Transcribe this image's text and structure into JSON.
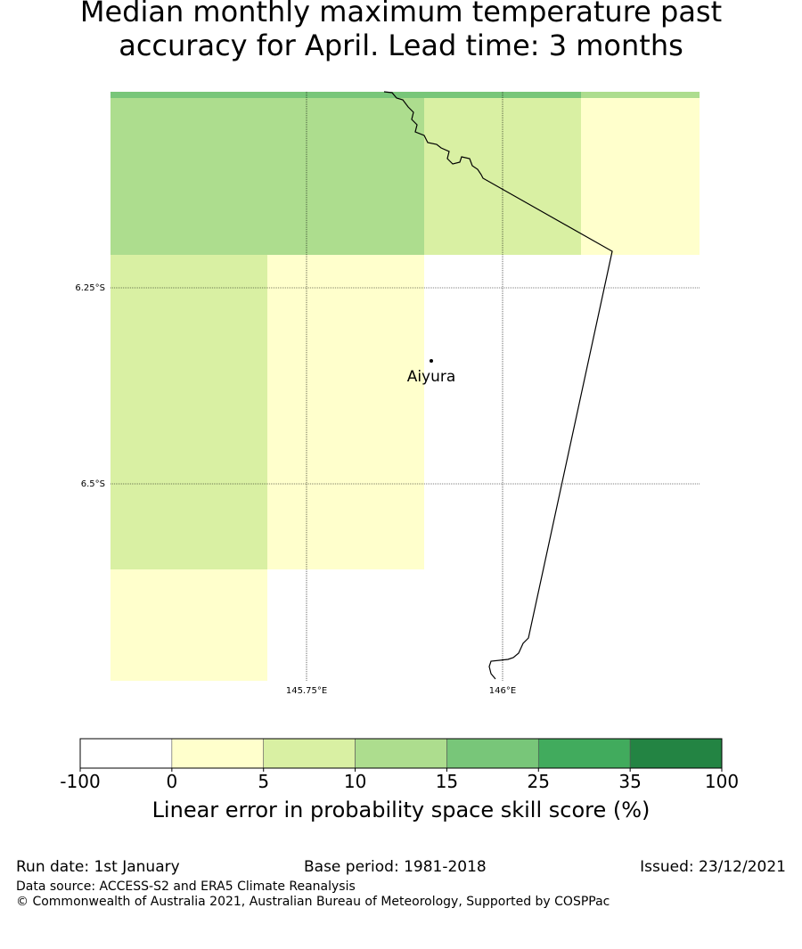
{
  "title": {
    "line1": "Median monthly maximum temperature past",
    "line2": "accuracy for April. Lead time: 3 months"
  },
  "map": {
    "latitude_labels": [
      "6.25°S",
      "6.5°S"
    ],
    "longitude_labels": [
      "145.75°E",
      "146°E"
    ],
    "place": {
      "name": "Aiyura"
    },
    "grid_cells": [
      {
        "band": "10-15",
        "color": "#addd8e"
      },
      {
        "band": "5-10",
        "color": "#d9f0a3"
      },
      {
        "band": "0-5",
        "color": "#ffffcc"
      },
      {
        "band": "15-25",
        "color": "#78c679"
      }
    ]
  },
  "colorbar": {
    "ticks": [
      "-100",
      "0",
      "5",
      "10",
      "15",
      "25",
      "35",
      "100"
    ],
    "colors": [
      "#ffffff",
      "#ffffcc",
      "#d9f0a3",
      "#addd8e",
      "#78c679",
      "#41ab5d",
      "#238443"
    ],
    "label": "Linear error in probability space skill score (%)"
  },
  "footer": {
    "run_date": "Run date: 1st January",
    "base_period": "Base period: 1981-2018",
    "issued": "Issued: 23/12/2021",
    "data_source": "Data source: ACCESS-S2 and ERA5 Climate Reanalysis",
    "copyright": "© Commonwealth of Australia 2021, Australian Bureau of Meteorology, Supported by COSPPac"
  }
}
